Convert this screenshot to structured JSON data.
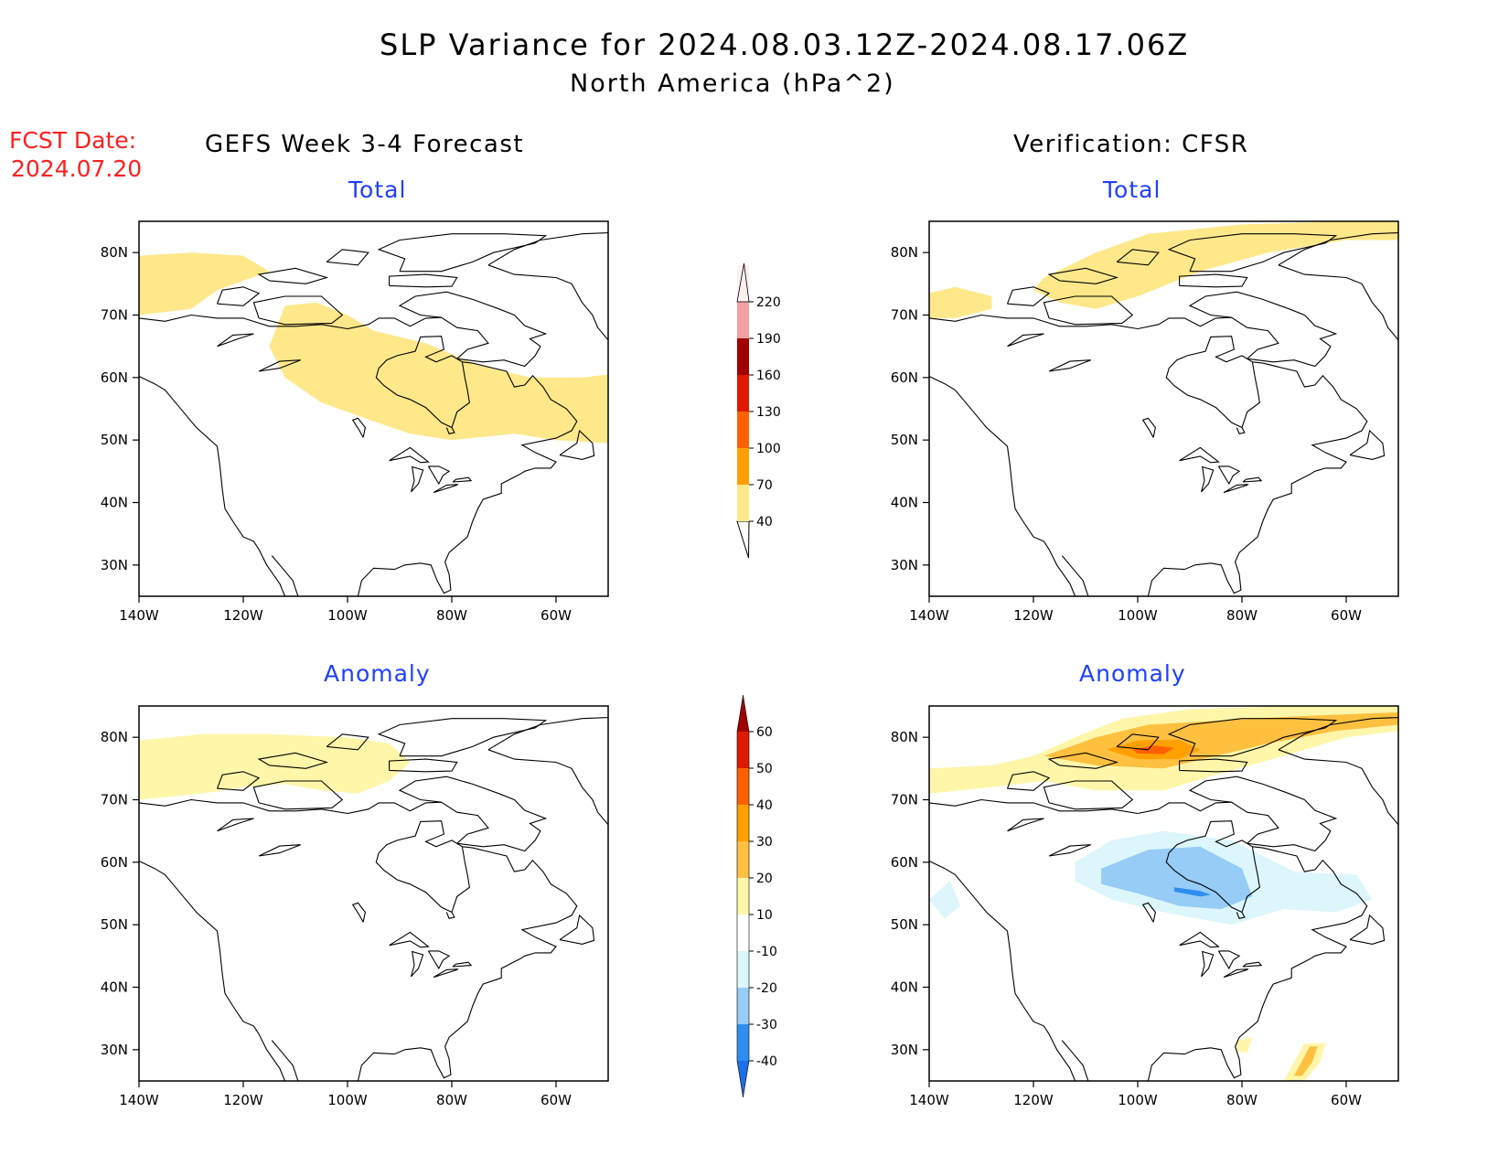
{
  "title": "SLP Variance for 2024.08.03.12Z-2024.08.17.06Z",
  "subtitle": "North America (hPa^2)",
  "fcst_label": "FCST Date:",
  "fcst_date": "2024.07.20",
  "left_heading": "GEFS Week 3-4 Forecast",
  "right_heading": "Verification: CFSR",
  "panels": [
    {
      "id": "gefs-total",
      "title": "Total"
    },
    {
      "id": "cfsr-total",
      "title": "Total"
    },
    {
      "id": "gefs-anomaly",
      "title": "Anomaly"
    },
    {
      "id": "cfsr-anomaly",
      "title": "Anomaly"
    }
  ],
  "axes": {
    "lon_range": [
      -140,
      -50
    ],
    "lat_range": [
      25,
      85
    ],
    "lon_ticks": [
      "140W",
      "120W",
      "100W",
      "80W",
      "60W"
    ],
    "lat_ticks": [
      "30N",
      "40N",
      "50N",
      "60N",
      "70N",
      "80N"
    ]
  },
  "total_colorbar": {
    "levels": [
      "40",
      "70",
      "100",
      "130",
      "160",
      "190",
      "220"
    ],
    "colors": [
      "#fee88a",
      "#ffa000",
      "#ff6000",
      "#e01a00",
      "#a00000",
      "#f4a0a0",
      "#fff0f0"
    ]
  },
  "anomaly_colorbar": {
    "levels": [
      "-40",
      "-30",
      "-20",
      "-10",
      "10",
      "20",
      "30",
      "40",
      "50",
      "60"
    ],
    "colors": [
      "#1e6ee6",
      "#2e8ef0",
      "#96ccf6",
      "#dcf6fc",
      "#ffffff",
      "#fff6aa",
      "#ffc040",
      "#ffa000",
      "#ff6000",
      "#e01a00",
      "#a00000"
    ]
  }
}
